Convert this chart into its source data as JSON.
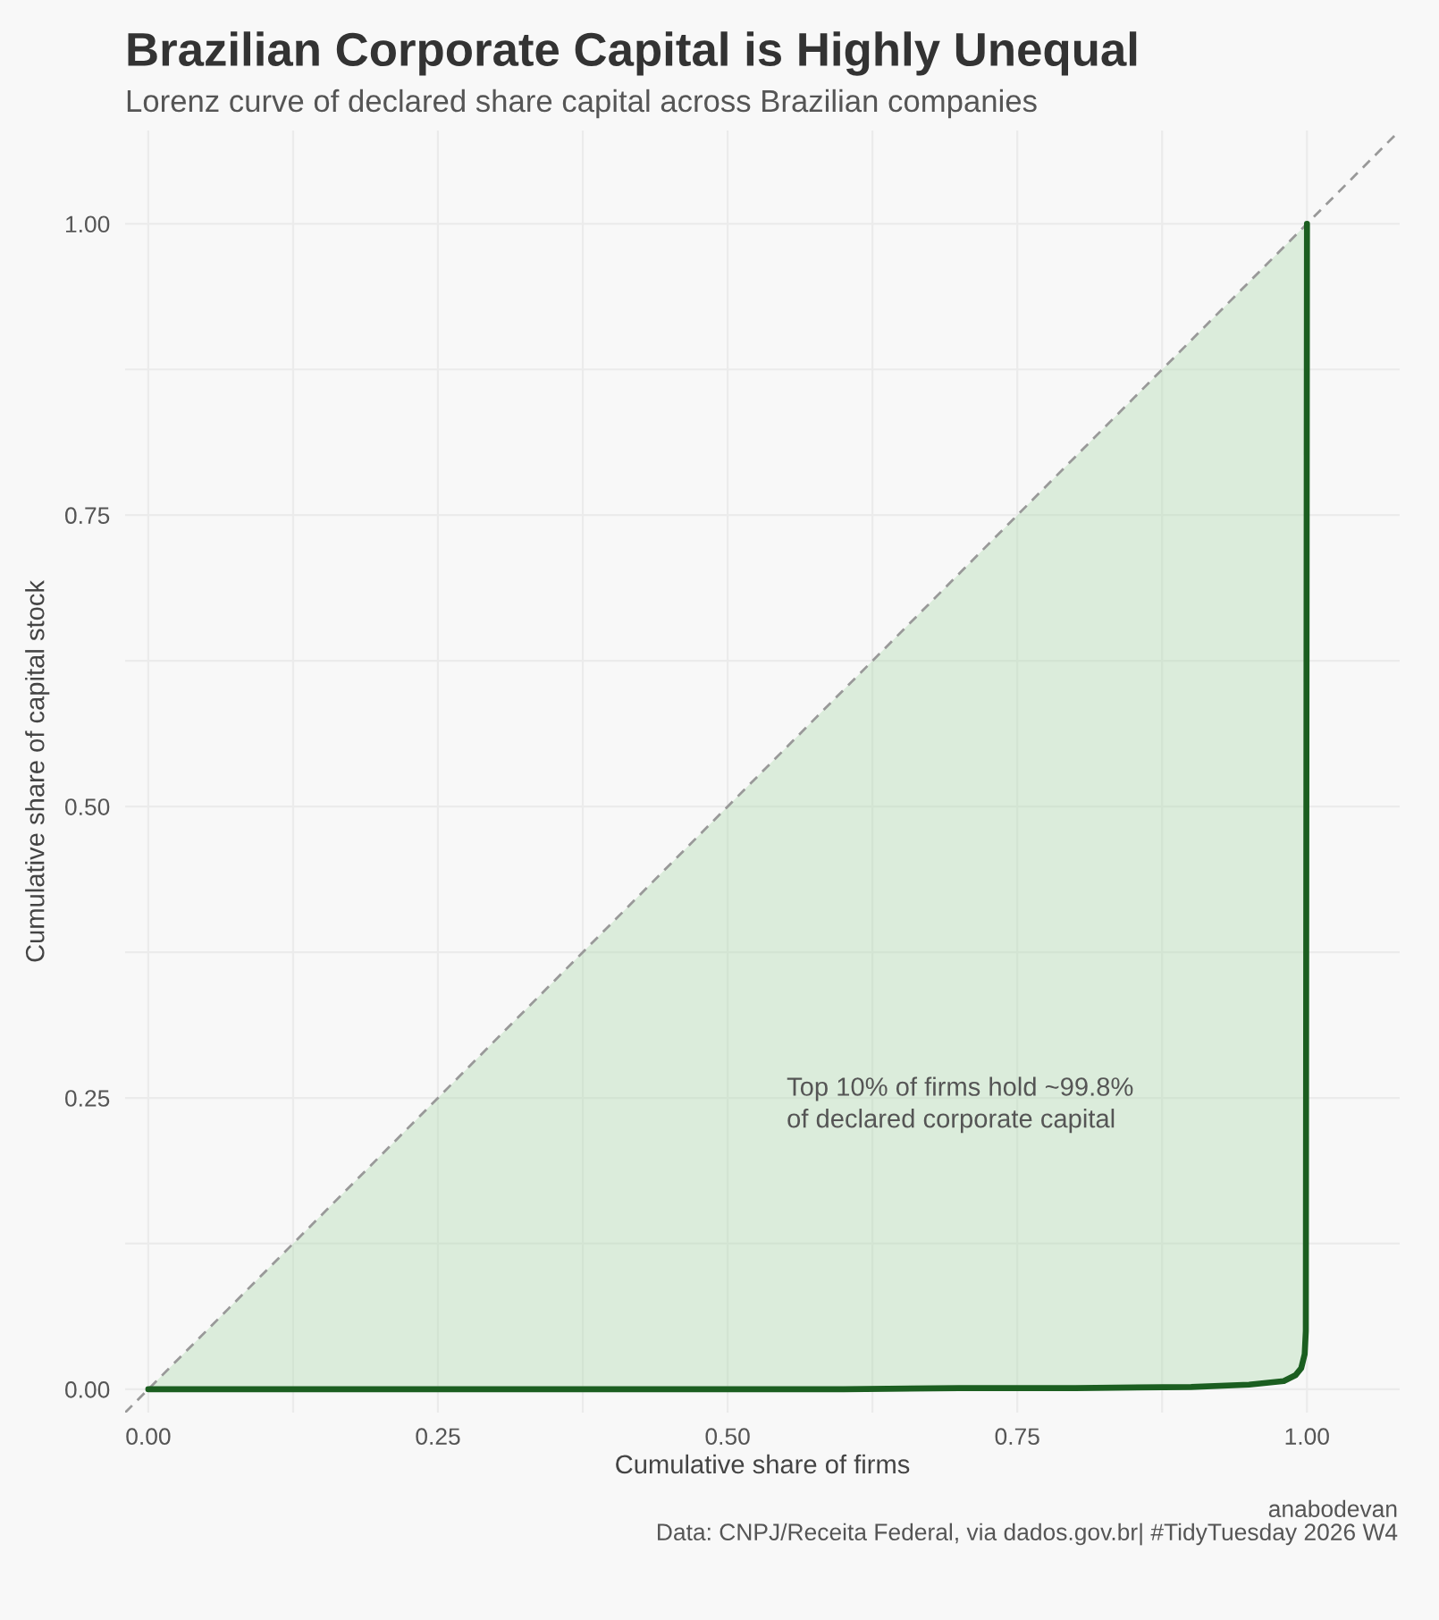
{
  "chart_data": {
    "type": "line",
    "title": "Brazilian Corporate Capital is Highly Unequal",
    "subtitle": "Lorenz curve of declared share capital across Brazilian companies",
    "xlabel": "Cumulative share of firms",
    "ylabel": "Cumulative share of capital stock",
    "annotations": [
      "Top 10% of firms hold ~99.8%\nof declared corporate capital",
      "anabodevan",
      "Data: CNPJ/Receita Federal, via dados.gov.br| #TidyTuesday 2026 W4"
    ],
    "series": [
      {
        "color": "#999999",
        "line_style": "dashed",
        "x": [
          -0.02,
          1.08
        ],
        "values": [
          -0.02,
          1.08
        ]
      },
      {
        "color": "#1b5e20",
        "x": [
          0,
          0.1,
          0.2,
          0.3,
          0.4,
          0.5,
          0.6,
          0.7,
          0.8,
          0.9,
          0.95,
          0.98,
          0.99,
          0.995,
          0.998,
          0.999,
          1.0
        ],
        "values": [
          0,
          0,
          0,
          0,
          0,
          0,
          0,
          0.001,
          0.001,
          0.002,
          0.004,
          0.007,
          0.012,
          0.018,
          0.03,
          0.05,
          1.0
        ],
        "lower": [
          0,
          0,
          0,
          0,
          0,
          0,
          0,
          0.001,
          0.001,
          0.002,
          0.004,
          0.007,
          0.012,
          0.018,
          0.03,
          0.05,
          1.0
        ],
        "upper": [
          0,
          0.1,
          0.2,
          0.3,
          0.4,
          0.5,
          0.6,
          0.7,
          0.8,
          0.9,
          0.95,
          0.98,
          0.99,
          0.995,
          0.998,
          0.999,
          1.0
        ]
      }
    ],
    "xlim": [
      -0.02,
      1.08
    ],
    "ylim": [
      -0.02,
      1.08
    ],
    "xticks": [
      {
        "value": 0,
        "label": "0.00"
      },
      {
        "value": 0.125,
        "label": null
      },
      {
        "value": 0.25,
        "label": "0.25"
      },
      {
        "value": 0.375,
        "label": null
      },
      {
        "value": 0.5,
        "label": "0.50"
      },
      {
        "value": 0.625,
        "label": null
      },
      {
        "value": 0.75,
        "label": "0.75"
      },
      {
        "value": 0.875,
        "label": null
      },
      {
        "value": 1,
        "label": "1.00"
      }
    ],
    "yticks": [
      {
        "value": 0,
        "label": "0.00"
      },
      {
        "value": 0.125,
        "label": null
      },
      {
        "value": 0.25,
        "label": "0.25"
      },
      {
        "value": 0.375,
        "label": null
      },
      {
        "value": 0.5,
        "label": "0.50"
      },
      {
        "value": 0.625,
        "label": null
      },
      {
        "value": 0.75,
        "label": "0.75"
      },
      {
        "value": 0.875,
        "label": null
      },
      {
        "value": 1,
        "label": "1.00"
      }
    ],
    "grid": true,
    "marker": "none",
    "line_style": "solid"
  }
}
